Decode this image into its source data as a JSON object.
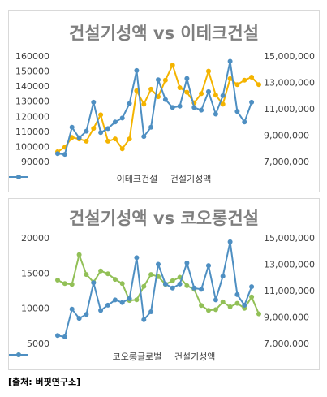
{
  "source_note": "[출처: 버핏연구소]",
  "chart_data": [
    {
      "type": "line",
      "title": "건설기성액 vs 이테크건설",
      "grid": false,
      "legend_position": "bottom",
      "left_axis": {
        "range": [
          90000,
          160000
        ],
        "ticks": [
          "160000",
          "150000",
          "140000",
          "130000",
          "120000",
          "110000",
          "100000",
          "90000"
        ]
      },
      "right_axis": {
        "range": [
          7000000,
          15000000
        ],
        "ticks": [
          "15,000,000",
          "13,000,000",
          "11,000,000",
          "9,000,000",
          "7,000,000"
        ]
      },
      "series": [
        {
          "name": "이테크건설",
          "axis": "left",
          "color": "#f4b400",
          "values": [
            96500,
            99500,
            106000,
            105000,
            103500,
            112000,
            121000,
            103500,
            105000,
            98500,
            105000,
            137000,
            128000,
            138000,
            133000,
            144000,
            154000,
            139000,
            136000,
            129000,
            135000,
            150000,
            134000,
            128000,
            145000,
            141000,
            144000,
            146000,
            141000
          ]
        },
        {
          "name": "건설기성액",
          "axis": "right",
          "color": "#4e8fc2",
          "values": [
            7600000,
            7550000,
            9600000,
            8800000,
            9300000,
            11500000,
            9200000,
            9500000,
            10000000,
            10300000,
            11400000,
            13900000,
            8900000,
            9600000,
            13200000,
            11700000,
            11100000,
            11200000,
            13300000,
            11100000,
            10900000,
            12300000,
            10600000,
            12000000,
            14600000,
            10800000,
            10000000,
            11500000
          ]
        }
      ]
    },
    {
      "type": "line",
      "title": "건설기성액 vs 코오롱건설",
      "grid": false,
      "legend_position": "bottom",
      "left_axis": {
        "range": [
          5000,
          20000
        ],
        "ticks": [
          "20000",
          "15000",
          "10000",
          "5000"
        ]
      },
      "right_axis": {
        "range": [
          7000000,
          15000000
        ],
        "ticks": [
          "15,000,000",
          "13,000,000",
          "11,000,000",
          "9,000,000",
          "7,000,000"
        ]
      },
      "series": [
        {
          "name": "코오롱글로벌",
          "axis": "left",
          "color": "#92c057",
          "values": [
            14000,
            13500,
            13400,
            17600,
            14800,
            13700,
            15300,
            14900,
            14100,
            13500,
            11100,
            11200,
            13100,
            14800,
            14500,
            13400,
            13900,
            14400,
            13200,
            12700,
            10400,
            9700,
            9800,
            10900,
            10200,
            10700,
            10000,
            11600,
            9200
          ]
        },
        {
          "name": "건설기성액",
          "axis": "right",
          "color": "#4e8fc2",
          "values": [
            7600000,
            7500000,
            9600000,
            8900000,
            9200000,
            11600000,
            9500000,
            9900000,
            10300000,
            10100000,
            10400000,
            13500000,
            8800000,
            9400000,
            13000000,
            11500000,
            11200000,
            11500000,
            13100000,
            11200000,
            11100000,
            12900000,
            10300000,
            12100000,
            14700000,
            10700000,
            9900000,
            11300000
          ]
        }
      ]
    }
  ]
}
